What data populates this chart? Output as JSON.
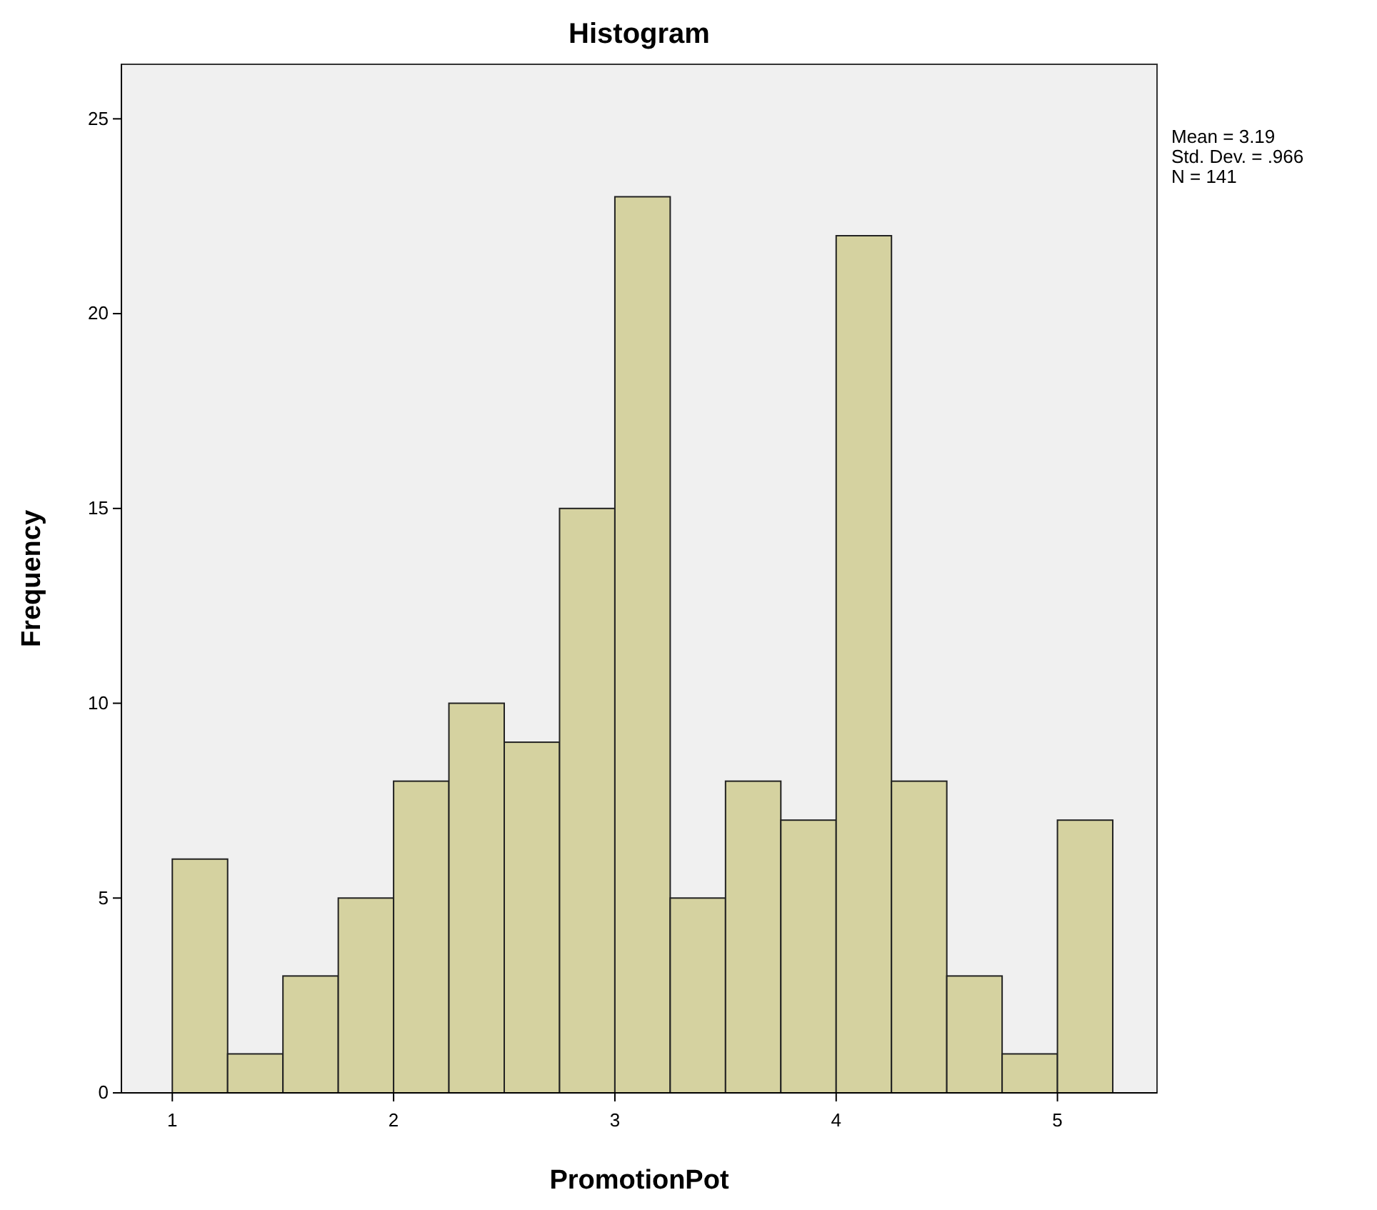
{
  "chart_data": {
    "type": "histogram",
    "title": "Histogram",
    "xlabel": "PromotionPot",
    "ylabel": "Frequency",
    "bins": [
      1,
      1.25,
      1.5,
      1.75,
      2,
      2.25,
      2.5,
      2.75,
      3,
      3.25,
      3.5,
      3.75,
      4,
      4.25,
      4.5,
      4.75,
      5,
      5.25
    ],
    "values": [
      6,
      1,
      3,
      5,
      8,
      10,
      9,
      15,
      23,
      5,
      8,
      7,
      22,
      8,
      3,
      1,
      7
    ],
    "color": "#d5d2a0",
    "xlim": [
      0.77,
      5.45
    ],
    "xticks": [
      1,
      2,
      3,
      4,
      5
    ],
    "ylim": [
      0,
      26.4
    ],
    "yticks": [
      0,
      5,
      10,
      15,
      20,
      25
    ],
    "grid": false,
    "annotations": [
      "Mean = 3.19",
      "Std. Dev. = .966",
      "N = 141"
    ]
  }
}
